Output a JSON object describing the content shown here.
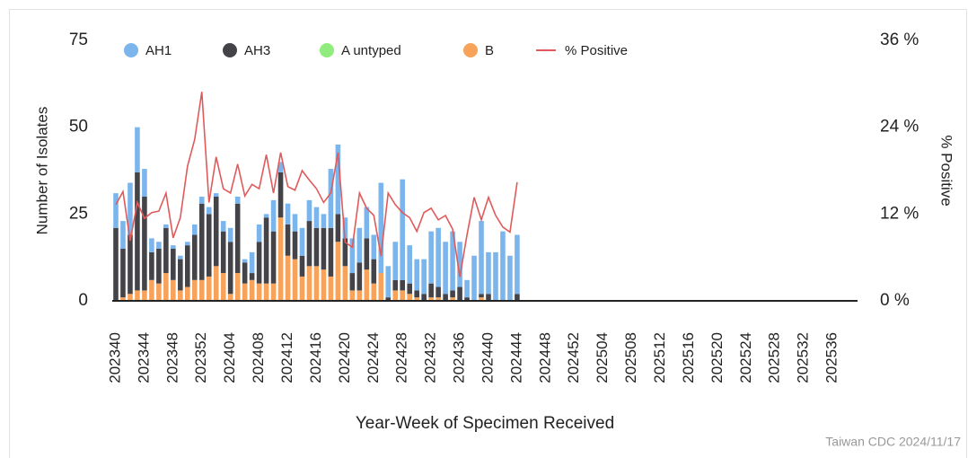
{
  "chart_data": {
    "type": "bar",
    "categories": [
      "202340",
      null,
      null,
      null,
      "202344",
      null,
      null,
      null,
      "202348",
      null,
      null,
      null,
      "202352",
      null,
      null,
      null,
      "202404",
      null,
      null,
      null,
      "202408",
      null,
      null,
      null,
      "202412",
      null,
      null,
      null,
      "202416",
      null,
      null,
      null,
      "202420",
      null,
      null,
      null,
      "202424",
      null,
      null,
      null,
      "202428",
      null,
      null,
      null,
      "202432",
      null,
      null,
      null,
      "202436",
      null,
      null,
      null,
      "202440",
      null,
      null,
      null,
      "202444",
      null,
      null,
      null,
      "202448",
      null,
      null,
      null,
      "202452",
      null,
      null,
      null,
      "202504",
      null,
      null,
      null,
      "202508",
      null,
      null,
      null,
      "202512",
      null,
      null,
      null,
      "202516",
      null,
      null,
      null,
      "202520",
      null,
      null,
      null,
      "202524",
      null,
      null,
      null,
      "202528",
      null,
      null,
      null,
      "202532",
      null,
      null,
      null,
      "202536",
      null,
      null,
      null
    ],
    "series": [
      {
        "name": "AH1",
        "color": "#7cb5ec",
        "values": [
          10,
          8,
          15,
          13,
          8,
          4,
          2,
          1,
          1,
          1,
          1,
          3,
          2,
          2,
          1,
          3,
          4,
          2,
          1,
          6,
          5,
          1,
          9,
          3,
          6,
          5,
          8,
          6,
          6,
          4,
          17,
          20,
          6,
          10,
          10,
          9,
          7,
          26,
          9,
          11,
          29,
          11,
          9,
          10,
          15,
          17,
          15,
          17,
          13,
          5,
          13,
          21,
          12,
          14,
          20,
          13,
          17,
          null,
          null,
          null,
          null,
          null,
          null,
          null,
          null,
          null,
          null,
          null,
          null,
          null,
          null,
          null,
          null,
          null,
          null,
          null,
          null,
          null,
          null,
          null,
          null,
          null,
          null,
          null,
          null,
          null,
          null,
          null,
          null,
          null,
          null,
          null,
          null,
          null,
          null,
          null,
          null,
          null,
          null,
          null,
          null,
          null,
          null,
          null
        ]
      },
      {
        "name": "AH3",
        "color": "#434348",
        "values": [
          21,
          14,
          17,
          34,
          27,
          8,
          10,
          13,
          9,
          9,
          12,
          13,
          22,
          18,
          20,
          12,
          15,
          20,
          6,
          2,
          12,
          19,
          15,
          13,
          9,
          8,
          6,
          13,
          11,
          12,
          14,
          8,
          8,
          5,
          8,
          9,
          7,
          0,
          1,
          3,
          3,
          3,
          2,
          2,
          4,
          3,
          2,
          2,
          4,
          1,
          0,
          1,
          2,
          0,
          0,
          0,
          2,
          null,
          null,
          null,
          null,
          null,
          null,
          null,
          null,
          null,
          null,
          null,
          null,
          null,
          null,
          null,
          null,
          null,
          null,
          null,
          null,
          null,
          null,
          null,
          null,
          null,
          null,
          null,
          null,
          null,
          null,
          null,
          null,
          null,
          null,
          null,
          null,
          null,
          null,
          null,
          null,
          null,
          null,
          null,
          null,
          null,
          null,
          null
        ]
      },
      {
        "name": "A untyped",
        "color": "#90ed7d",
        "values": [
          0,
          0,
          0,
          0,
          0,
          0,
          0,
          0,
          0,
          0,
          0,
          0,
          0,
          0,
          0,
          0,
          0,
          0,
          0,
          0,
          0,
          0,
          0,
          0,
          0,
          0,
          0,
          0,
          0,
          0,
          0,
          0,
          0,
          0,
          0,
          0,
          0,
          0,
          0,
          0,
          0,
          0,
          0,
          0,
          0,
          0,
          0,
          0,
          0,
          0,
          0,
          0,
          0,
          0,
          0,
          0,
          0,
          null,
          null,
          null,
          null,
          null,
          null,
          null,
          null,
          null,
          null,
          null,
          null,
          null,
          null,
          null,
          null,
          null,
          null,
          null,
          null,
          null,
          null,
          null,
          null,
          null,
          null,
          null,
          null,
          null,
          null,
          null,
          null,
          null,
          null,
          null,
          null,
          null,
          null,
          null,
          null,
          null,
          null,
          null,
          null,
          null,
          null,
          null
        ]
      },
      {
        "name": "B",
        "color": "#f7a35c",
        "values": [
          0,
          1,
          2,
          3,
          3,
          6,
          5,
          8,
          6,
          3,
          4,
          6,
          6,
          7,
          10,
          8,
          2,
          8,
          5,
          6,
          5,
          5,
          5,
          24,
          13,
          12,
          7,
          10,
          10,
          9,
          7,
          17,
          10,
          3,
          3,
          9,
          5,
          8,
          0,
          3,
          3,
          2,
          1,
          0,
          1,
          1,
          0,
          1,
          0,
          0,
          0,
          1,
          0,
          0,
          0,
          0,
          0,
          null,
          null,
          null,
          null,
          null,
          null,
          null,
          null,
          null,
          null,
          null,
          null,
          null,
          null,
          null,
          null,
          null,
          null,
          null,
          null,
          null,
          null,
          null,
          null,
          null,
          null,
          null,
          null,
          null,
          null,
          null,
          null,
          null,
          null,
          null,
          null,
          null,
          null,
          null,
          null,
          null,
          null,
          null,
          null,
          null,
          null,
          null
        ]
      },
      {
        "name": "% Positive",
        "type": "line",
        "axis": "y2",
        "color": "#e05a5a",
        "values": [
          13.3,
          15.1,
          8.3,
          13.6,
          11.4,
          12.2,
          12.4,
          14.9,
          8.7,
          11.5,
          18.6,
          22.3,
          28.9,
          13.6,
          19.9,
          15.5,
          14.9,
          18.9,
          14.5,
          16.1,
          15.5,
          20.2,
          14.9,
          20.5,
          15.8,
          15.3,
          18,
          16.7,
          15.5,
          13.6,
          14.9,
          20.5,
          8.1,
          7.4,
          14.9,
          12.8,
          11.8,
          6.2,
          14.9,
          13.3,
          12.2,
          11.5,
          9.6,
          12.2,
          12.8,
          11.2,
          11.8,
          9.9,
          3.3,
          9.1,
          14.3,
          11.2,
          14.3,
          11.8,
          10.2,
          9.5,
          16.4,
          null,
          null,
          null,
          null,
          null,
          null,
          null,
          null,
          null,
          null,
          null,
          null,
          null,
          null,
          null,
          null,
          null,
          null,
          null,
          null,
          null,
          null,
          null,
          null,
          null,
          null,
          null,
          null,
          null,
          null,
          null,
          null,
          null,
          null,
          null,
          null,
          null,
          null,
          null,
          null,
          null,
          null,
          null,
          null,
          null,
          null,
          null
        ]
      }
    ],
    "stacked": true,
    "ylabel": "Number of Isolates",
    "y2label": "% Positive",
    "xlabel": "Year-Week of Specimen Received",
    "ylim": [
      0,
      75
    ],
    "yticks": [
      0,
      25,
      50,
      75
    ],
    "y2lim": [
      0,
      36
    ],
    "y2ticks": [
      {
        "value": 0,
        "label": "0 %"
      },
      {
        "value": 12,
        "label": "12 %"
      },
      {
        "value": 24,
        "label": "24 %"
      },
      {
        "value": 36,
        "label": "36 %"
      }
    ],
    "legend": "top",
    "source": "Taiwan CDC 2024/11/17"
  }
}
